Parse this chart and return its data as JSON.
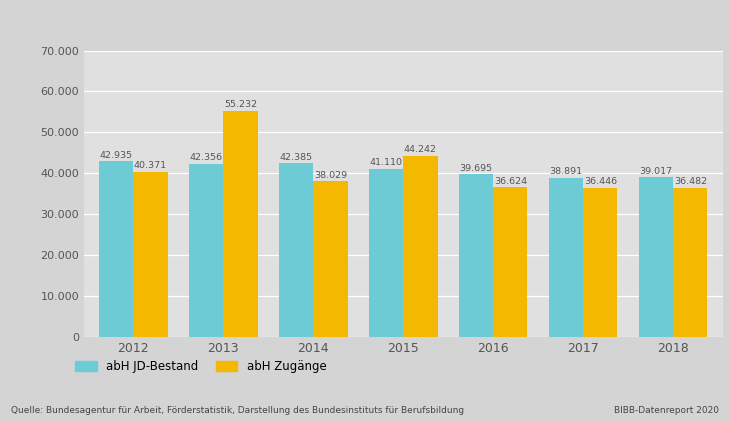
{
  "years": [
    "2012",
    "2013",
    "2014",
    "2015",
    "2016",
    "2017",
    "2018"
  ],
  "jd_bestand": [
    42935,
    42356,
    42385,
    41110,
    39695,
    38891,
    39017
  ],
  "zugaenge": [
    40371,
    55232,
    38029,
    44242,
    36624,
    36446,
    36482
  ],
  "jd_color": "#6dcbd6",
  "zugaenge_color": "#f5b800",
  "bg_outer": "#d4d4d4",
  "bg_plot": "#e0e0e0",
  "bg_top": "#c8c8c8",
  "ylim": [
    0,
    70000
  ],
  "yticks": [
    0,
    10000,
    20000,
    30000,
    40000,
    50000,
    60000,
    70000
  ],
  "ytick_labels": [
    "0",
    "10.000",
    "20.000",
    "30.000",
    "40.000",
    "50.000",
    "60.000",
    "70.000"
  ],
  "legend_label_1": "abH JD-Bestand",
  "legend_label_2": "abH Zugänge",
  "source_text": "Quelle: Bundesagentur für Arbeit, Förderstatistik, Darstellung des Bundesinstituts für Berufsbildung",
  "bibb_text": "BIBB-Datenreport 2020",
  "bar_width": 0.38,
  "label_color": "#555555",
  "tick_color": "#555555",
  "grid_color": "#ffffff"
}
